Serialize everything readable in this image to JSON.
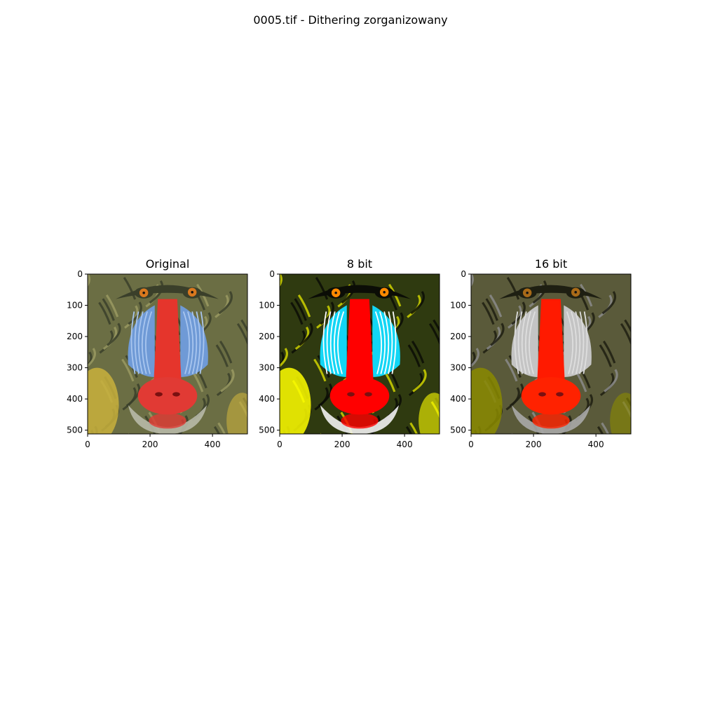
{
  "figure": {
    "suptitle": "0005.tif - Dithering zorganizowany"
  },
  "panels": [
    {
      "title": "Original",
      "xticks": [
        "0",
        "200",
        "400"
      ],
      "yticks": [
        "0",
        "100",
        "200",
        "300",
        "400",
        "500"
      ],
      "palette": {
        "fur_dark": "#3a3f2a",
        "fur": "#6b6e44",
        "fur_light": "#9a9a62",
        "cheek": "#6f9ad6",
        "cheek_light": "#a9c6ef",
        "nose": "#e5352c",
        "mouth": "#e13a34",
        "eye": "#d9781e",
        "beard": "#b8b9a8",
        "yellow": "#c9b13c"
      }
    },
    {
      "title": "8 bit",
      "xticks": [
        "0",
        "200",
        "400"
      ],
      "yticks": [
        "0",
        "100",
        "200",
        "300",
        "400",
        "500"
      ],
      "palette": {
        "fur_dark": "#0b0d06",
        "fur": "#2f3a10",
        "fur_light": "#cfd400",
        "cheek": "#12d6f5",
        "cheek_light": "#ffffff",
        "nose": "#ff0000",
        "mouth": "#ff0000",
        "eye": "#ff8a00",
        "beard": "#f2f2f2",
        "yellow": "#ffff00"
      }
    },
    {
      "title": "16 bit",
      "xticks": [
        "0",
        "200",
        "400"
      ],
      "yticks": [
        "0",
        "100",
        "200",
        "300",
        "400",
        "500"
      ],
      "palette": {
        "fur_dark": "#1e1f12",
        "fur": "#5a5a3a",
        "fur_light": "#8b8b8b",
        "cheek": "#c4c4c4",
        "cheek_light": "#dedede",
        "nose": "#ff1a00",
        "mouth": "#ff2200",
        "eye": "#a86a18",
        "beard": "#a8a8a8",
        "yellow": "#8a8a00"
      }
    }
  ]
}
